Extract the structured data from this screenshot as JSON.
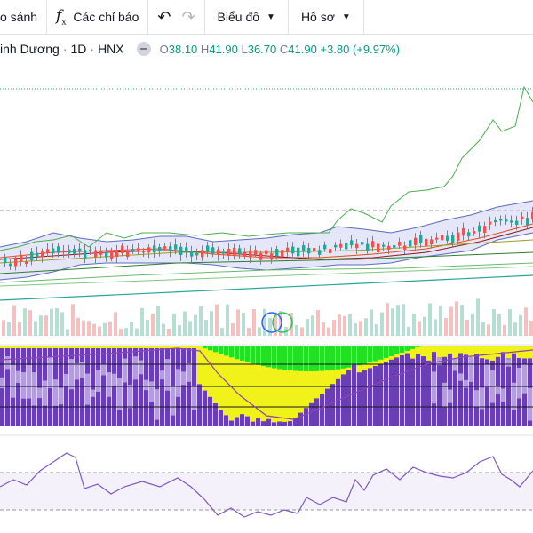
{
  "toolbar": {
    "compare_label": "o sánh",
    "indicators_label": "Các chỉ báo",
    "chart_label": "Biểu đồ",
    "profile_label": "Hồ sơ"
  },
  "legend": {
    "symbol": "inh Dương",
    "interval": "1D",
    "exchange": "HNX",
    "open_label": "O",
    "open": "38.10",
    "high_label": "H",
    "high": "41.90",
    "low_label": "L",
    "low": "36.70",
    "close_label": "C",
    "close": "41.90",
    "change": "+3.80 (+9.97%)"
  },
  "colors": {
    "up": "#26a69a",
    "down": "#ef5350",
    "accent_green": "#089981",
    "macd_purple": "#6a3fb5",
    "macd_yellow": "#f2f21b",
    "macd_green": "#22e022",
    "rsi_line": "#7e57c2",
    "band_fill": "#c5c8f0"
  },
  "icons": [
    "fx-icon",
    "undo-icon",
    "redo-icon",
    "chevron-down-icon",
    "eye-icon",
    "event-marker-icon"
  ]
}
